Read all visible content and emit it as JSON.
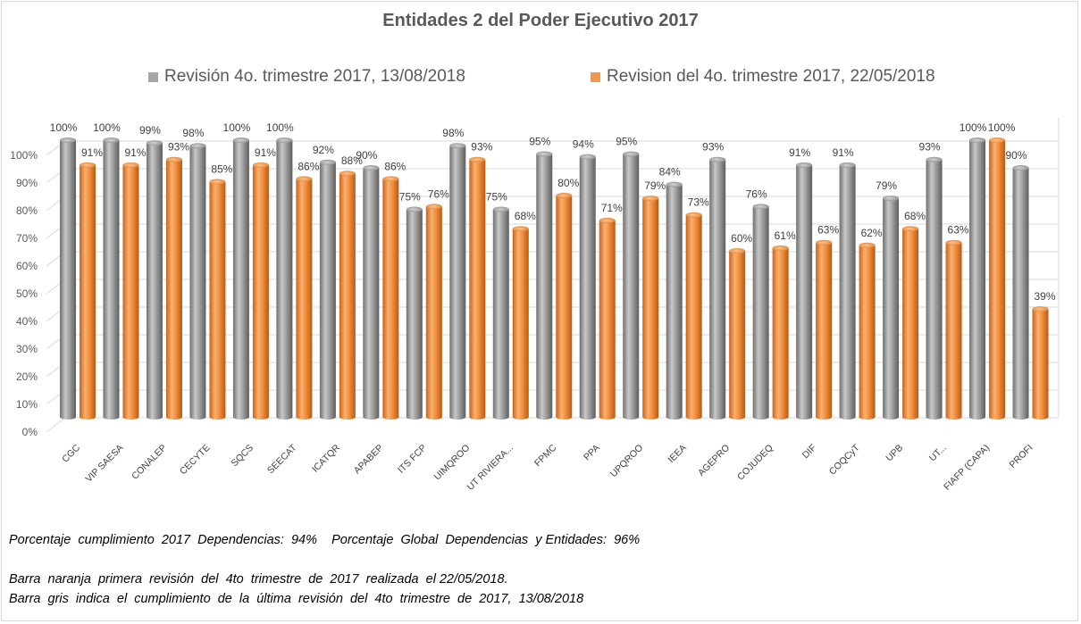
{
  "chart_data": {
    "type": "bar",
    "title": "Entidades 2 del Poder Ejecutivo 2017",
    "categories": [
      "CGC",
      "VIP SAESA",
      "CONALEP",
      "CECYTE",
      "SQCS",
      "SEECAT",
      "ICATQR",
      "APABEP",
      "ITS FCP",
      "UIMQROO",
      "UT RIVIERA...",
      "FPMC",
      "PPA",
      "UPQROO",
      "IEEA",
      "AGEPRO",
      "COJUDEQ",
      "DIF",
      "COQCyT",
      "UPB",
      "UT...",
      "FIAFP (CAPA)",
      "PROFI"
    ],
    "series": [
      {
        "name": "Revisión 4o. trimestre 2017, 13/08/2018",
        "color": "#a6a6a6",
        "values": [
          100,
          100,
          99,
          98,
          100,
          100,
          92,
          90,
          75,
          98,
          75,
          95,
          94,
          95,
          84,
          93,
          76,
          91,
          91,
          79,
          93,
          100,
          90
        ],
        "labels": [
          "100%",
          "100%",
          "99%",
          "98%",
          "100%",
          "100%",
          "92%",
          "90%",
          "75%",
          "98%",
          "75%",
          "95%",
          "94%",
          "95%",
          "84%",
          "93%",
          "76%",
          "91%",
          "91%",
          "79%",
          "93%",
          "100%",
          "90%"
        ]
      },
      {
        "name": "Revision del 4o. trimestre 2017, 22/05/2018",
        "color": "#f79646",
        "values": [
          91,
          91,
          93,
          85,
          91,
          86,
          88,
          86,
          76,
          93,
          68,
          80,
          71,
          79,
          73,
          60,
          61,
          63,
          62,
          68,
          63,
          100,
          39
        ],
        "labels": [
          "91%",
          "91%",
          "93%",
          "85%",
          "91%",
          "86%",
          "88%",
          "86%",
          "76%",
          "93%",
          "68%",
          "80%",
          "71%",
          "79%",
          "73%",
          "60%",
          "61%",
          "63%",
          "62%",
          "68%",
          "63%",
          "100%",
          "39%"
        ]
      }
    ],
    "ylim": [
      0,
      100
    ],
    "yticks": [
      "0%",
      "10%",
      "20%",
      "30%",
      "40%",
      "50%",
      "60%",
      "70%",
      "80%",
      "90%",
      "100%"
    ],
    "grid": true,
    "legend_position": "top"
  },
  "notes": {
    "line1": "Porcentaje  cumplimiento  2017  Dependencias:  94%    Porcentaje  Global  Dependencias  y Entidades:  96%",
    "line2": "Barra  naranja  primera  revisión  del  4to  trimestre  de  2017  realizada  el 22/05/2018.",
    "line3": "Barra  gris  indica  el  cumplimiento  de  la  última  revisión  del  4to  trimestre  de  2017,  13/08/2018"
  }
}
